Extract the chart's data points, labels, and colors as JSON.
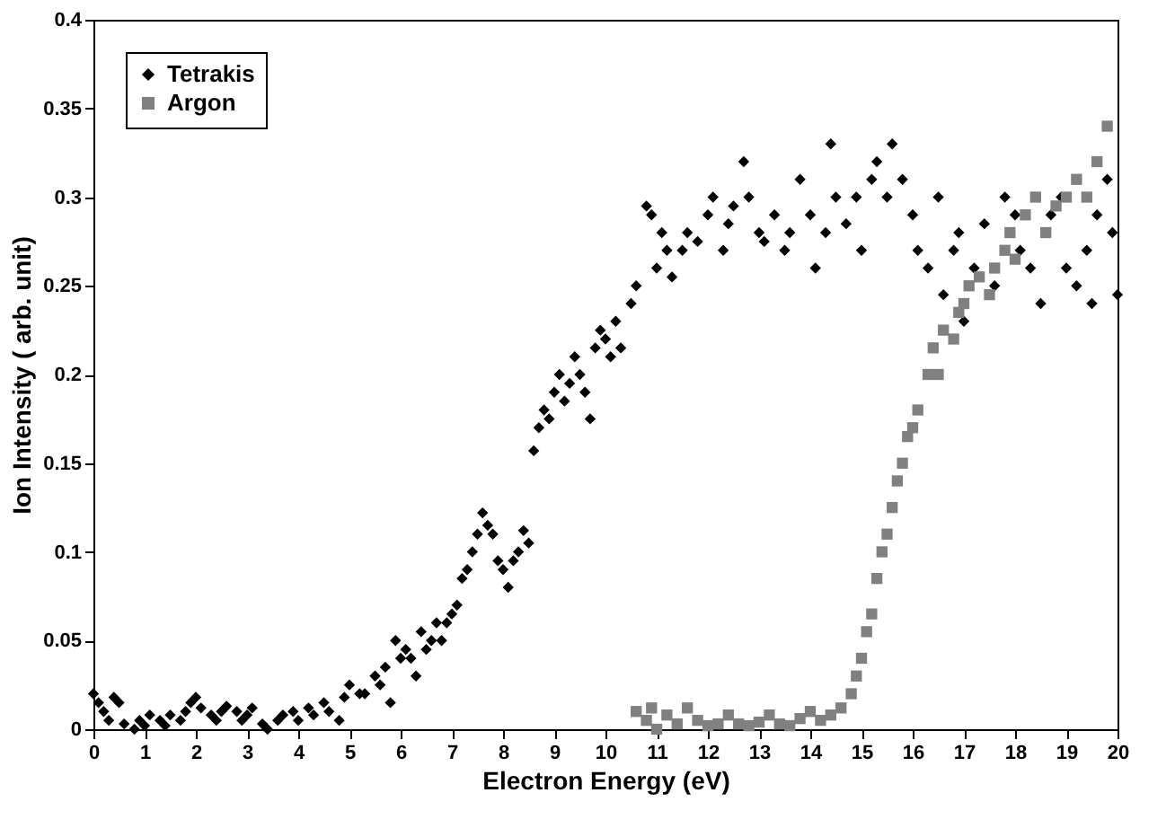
{
  "chart_data": {
    "type": "scatter",
    "xlabel": "Electron Energy (eV)",
    "ylabel": "Ion Intensity ( arb. unit)",
    "xlim": [
      0,
      20
    ],
    "ylim": [
      0,
      0.4
    ],
    "xticks": [
      0,
      1,
      2,
      3,
      4,
      5,
      6,
      7,
      8,
      9,
      10,
      11,
      12,
      13,
      14,
      15,
      16,
      17,
      18,
      19,
      20
    ],
    "yticks": [
      0,
      0.05,
      0.1,
      0.15,
      0.2,
      0.25,
      0.3,
      0.35,
      0.4
    ],
    "grid": false,
    "legend": "top left",
    "series": [
      {
        "name": "Tetrakis",
        "color": "#000000",
        "marker": "diamond",
        "x": [
          0.0,
          0.1,
          0.2,
          0.3,
          0.4,
          0.5,
          0.6,
          0.8,
          0.9,
          1.0,
          1.1,
          1.3,
          1.4,
          1.5,
          1.7,
          1.8,
          1.9,
          2.0,
          2.1,
          2.3,
          2.4,
          2.5,
          2.6,
          2.8,
          2.9,
          3.0,
          3.1,
          3.3,
          3.4,
          3.6,
          3.7,
          3.9,
          4.0,
          4.2,
          4.3,
          4.5,
          4.6,
          4.8,
          4.9,
          5.0,
          5.2,
          5.3,
          5.5,
          5.6,
          5.7,
          5.8,
          5.9,
          6.0,
          6.1,
          6.2,
          6.3,
          6.4,
          6.5,
          6.6,
          6.7,
          6.8,
          6.9,
          7.0,
          7.1,
          7.2,
          7.3,
          7.4,
          7.5,
          7.6,
          7.7,
          7.8,
          7.9,
          8.0,
          8.1,
          8.2,
          8.3,
          8.4,
          8.5,
          8.6,
          8.7,
          8.8,
          8.9,
          9.0,
          9.1,
          9.2,
          9.3,
          9.4,
          9.5,
          9.6,
          9.7,
          9.8,
          9.9,
          10.0,
          10.1,
          10.2,
          10.3,
          10.5,
          10.6,
          10.8,
          10.9,
          11.0,
          11.1,
          11.2,
          11.3,
          11.5,
          11.6,
          11.8,
          12.0,
          12.1,
          12.3,
          12.4,
          12.5,
          12.7,
          12.8,
          13.0,
          13.1,
          13.3,
          13.5,
          13.6,
          13.8,
          14.0,
          14.1,
          14.3,
          14.4,
          14.5,
          14.7,
          14.9,
          15.0,
          15.2,
          15.3,
          15.5,
          15.6,
          15.8,
          16.0,
          16.1,
          16.3,
          16.5,
          16.6,
          16.8,
          16.9,
          17.0,
          17.2,
          17.4,
          17.6,
          17.8,
          18.0,
          18.1,
          18.3,
          18.5,
          18.7,
          18.9,
          19.0,
          19.2,
          19.4,
          19.5,
          19.6,
          19.8,
          19.9,
          20.0
        ],
        "values": [
          0.02,
          0.015,
          0.01,
          0.005,
          0.018,
          0.015,
          0.003,
          0.0,
          0.005,
          0.002,
          0.008,
          0.005,
          0.002,
          0.008,
          0.005,
          0.01,
          0.015,
          0.018,
          0.012,
          0.008,
          0.005,
          0.01,
          0.013,
          0.01,
          0.005,
          0.008,
          0.012,
          0.003,
          0.0,
          0.005,
          0.008,
          0.01,
          0.005,
          0.012,
          0.008,
          0.015,
          0.01,
          0.005,
          0.018,
          0.025,
          0.02,
          0.02,
          0.03,
          0.025,
          0.035,
          0.015,
          0.05,
          0.04,
          0.045,
          0.04,
          0.03,
          0.055,
          0.045,
          0.05,
          0.06,
          0.05,
          0.06,
          0.065,
          0.07,
          0.085,
          0.09,
          0.1,
          0.11,
          0.122,
          0.115,
          0.11,
          0.095,
          0.09,
          0.08,
          0.095,
          0.1,
          0.112,
          0.105,
          0.157,
          0.17,
          0.18,
          0.175,
          0.19,
          0.2,
          0.185,
          0.195,
          0.21,
          0.2,
          0.19,
          0.175,
          0.215,
          0.225,
          0.22,
          0.21,
          0.23,
          0.215,
          0.24,
          0.25,
          0.295,
          0.29,
          0.26,
          0.28,
          0.27,
          0.255,
          0.27,
          0.28,
          0.275,
          0.29,
          0.3,
          0.27,
          0.285,
          0.295,
          0.32,
          0.3,
          0.28,
          0.275,
          0.29,
          0.27,
          0.28,
          0.31,
          0.29,
          0.26,
          0.28,
          0.33,
          0.3,
          0.285,
          0.3,
          0.27,
          0.31,
          0.32,
          0.3,
          0.33,
          0.31,
          0.29,
          0.27,
          0.26,
          0.3,
          0.245,
          0.27,
          0.28,
          0.23,
          0.26,
          0.285,
          0.25,
          0.3,
          0.29,
          0.27,
          0.26,
          0.24,
          0.29,
          0.3,
          0.26,
          0.25,
          0.27,
          0.24,
          0.29,
          0.31,
          0.28,
          0.245
        ]
      },
      {
        "name": "Argon",
        "color": "#808080",
        "marker": "square",
        "x": [
          10.6,
          10.8,
          10.9,
          11.0,
          11.2,
          11.4,
          11.6,
          11.8,
          12.0,
          12.2,
          12.4,
          12.6,
          12.8,
          13.0,
          13.2,
          13.4,
          13.6,
          13.8,
          14.0,
          14.2,
          14.4,
          14.6,
          14.8,
          14.9,
          15.0,
          15.1,
          15.2,
          15.3,
          15.4,
          15.5,
          15.6,
          15.7,
          15.8,
          15.9,
          16.0,
          16.1,
          16.3,
          16.4,
          16.5,
          16.6,
          16.8,
          16.9,
          17.0,
          17.1,
          17.3,
          17.5,
          17.6,
          17.8,
          17.9,
          18.0,
          18.2,
          18.4,
          18.6,
          18.8,
          19.0,
          19.2,
          19.4,
          19.6,
          19.8
        ],
        "values": [
          0.01,
          0.005,
          0.012,
          0.0,
          0.008,
          0.003,
          0.012,
          0.005,
          0.002,
          0.003,
          0.008,
          0.003,
          0.002,
          0.004,
          0.008,
          0.003,
          0.002,
          0.006,
          0.01,
          0.005,
          0.008,
          0.012,
          0.02,
          0.03,
          0.04,
          0.055,
          0.065,
          0.085,
          0.1,
          0.11,
          0.125,
          0.14,
          0.15,
          0.165,
          0.17,
          0.18,
          0.2,
          0.215,
          0.2,
          0.225,
          0.22,
          0.235,
          0.24,
          0.25,
          0.255,
          0.245,
          0.26,
          0.27,
          0.28,
          0.265,
          0.29,
          0.3,
          0.28,
          0.295,
          0.3,
          0.31,
          0.3,
          0.32,
          0.34
        ]
      }
    ]
  }
}
